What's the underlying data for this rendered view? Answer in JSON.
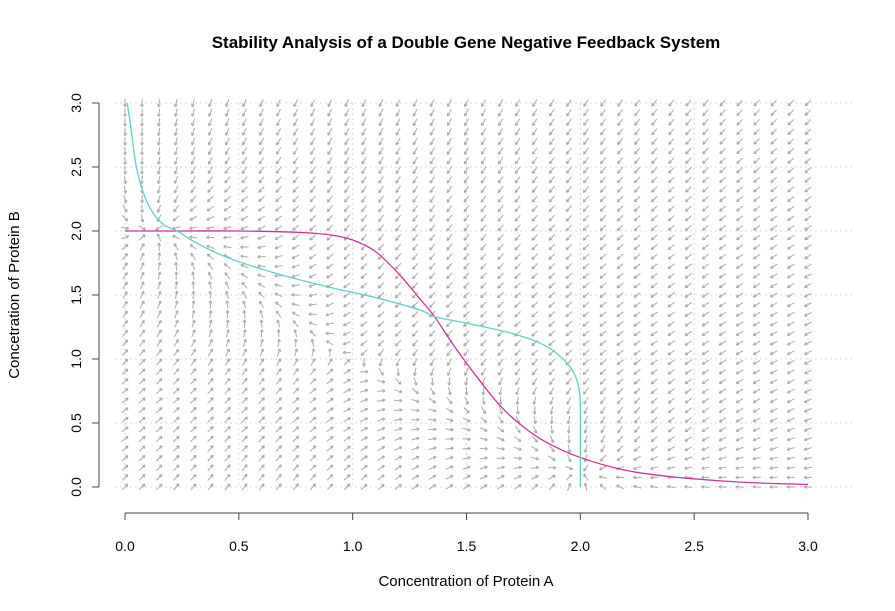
{
  "chart_data": {
    "type": "line",
    "title": "Stability Analysis of a Double Gene Negative Feedback System",
    "xlabel": "Concentration of Protein A",
    "ylabel": "Concetration of Protein B",
    "xlim": [
      0,
      3
    ],
    "ylim": [
      0,
      3
    ],
    "xticks": [
      "0.0",
      "0.5",
      "1.0",
      "1.5",
      "2.0",
      "2.5",
      "3.0"
    ],
    "yticks": [
      "0.0",
      "0.5",
      "1.0",
      "1.5",
      "2.0",
      "2.5",
      "3.0"
    ],
    "grid": true,
    "vector_field": {
      "color": "#a9a9a9",
      "x_start": 0.0,
      "x_end": 3.0,
      "x_step": 0.075,
      "y_start": 0.0,
      "y_end": 3.0,
      "y_step": 0.075
    },
    "series": [
      {
        "color": "#cc3399",
        "x": [
          0.0,
          0.25,
          0.5,
          0.75,
          0.9,
          1.0,
          1.1,
          1.2,
          1.3,
          1.36,
          1.45,
          1.55,
          1.65,
          1.75,
          1.85,
          2.0,
          2.2,
          2.4,
          2.6,
          2.8,
          3.0
        ],
        "y": [
          2.0,
          2.0,
          2.0,
          1.99,
          1.97,
          1.93,
          1.84,
          1.67,
          1.46,
          1.33,
          1.09,
          0.85,
          0.63,
          0.47,
          0.35,
          0.23,
          0.13,
          0.08,
          0.05,
          0.03,
          0.02
        ]
      },
      {
        "color": "#66cccc",
        "x": [
          0.01,
          0.03,
          0.05,
          0.08,
          0.12,
          0.17,
          0.23,
          0.3,
          0.4,
          0.5,
          0.7,
          0.9,
          1.1,
          1.3,
          1.36,
          1.5,
          1.7,
          1.85,
          1.95,
          1.99,
          2.0,
          2.0
        ],
        "y": [
          3.0,
          2.75,
          2.5,
          2.3,
          2.15,
          2.05,
          2.0,
          1.92,
          1.83,
          1.76,
          1.65,
          1.56,
          1.48,
          1.38,
          1.33,
          1.28,
          1.2,
          1.1,
          0.95,
          0.8,
          0.6,
          0.0
        ]
      }
    ]
  }
}
